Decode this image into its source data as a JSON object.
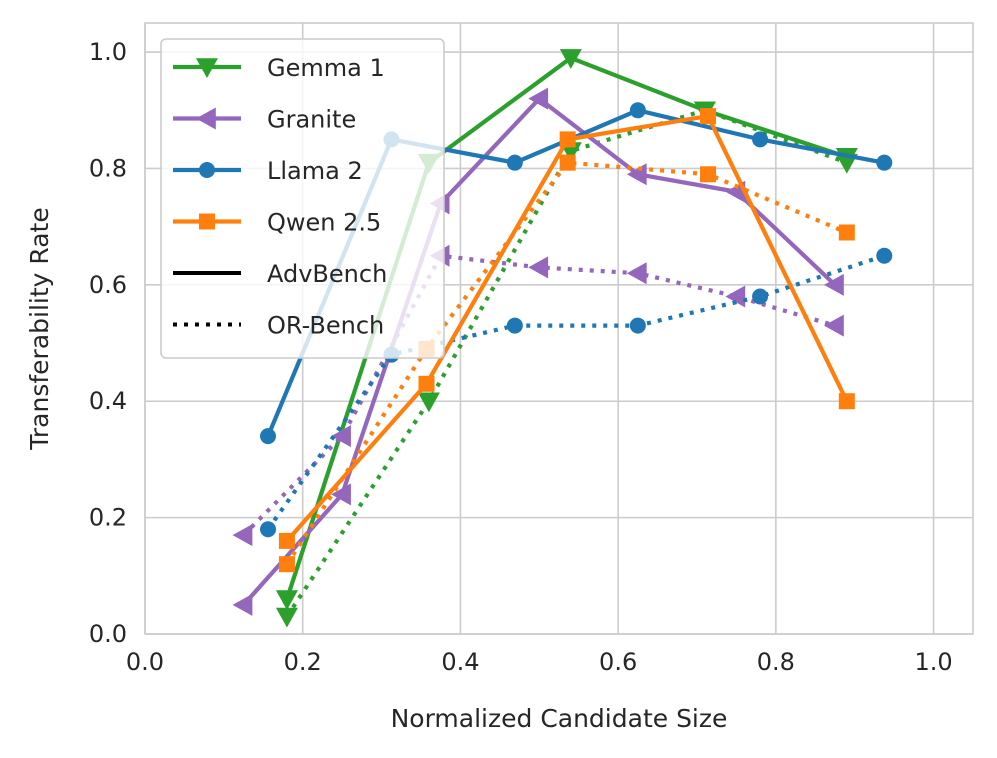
{
  "chart_data": {
    "type": "line",
    "title": "",
    "xlabel": "Normalized Candidate Size",
    "ylabel": "Transferability Rate",
    "xlim": [
      0.0,
      1.05
    ],
    "ylim": [
      0.0,
      1.05
    ],
    "xticks": [
      "0.0",
      "0.2",
      "0.4",
      "0.6",
      "0.8",
      "1.0"
    ],
    "yticks": [
      "0.0",
      "0.2",
      "0.4",
      "0.6",
      "0.8",
      "1.0"
    ],
    "grid": true,
    "legend_position": "top-left",
    "legend": {
      "models": [
        {
          "label": "Gemma 1",
          "color": "#2ca02c",
          "marker": "triangle-down"
        },
        {
          "label": "Granite",
          "color": "#9467bd",
          "marker": "triangle-left"
        },
        {
          "label": "Llama 2",
          "color": "#1f77b4",
          "marker": "circle"
        },
        {
          "label": "Qwen 2.5",
          "color": "#ff7f0e",
          "marker": "square"
        }
      ],
      "styles": [
        {
          "label": "AdvBench",
          "dash": "solid"
        },
        {
          "label": "OR-Bench",
          "dash": "dotted"
        }
      ]
    },
    "series": [
      {
        "model": "Gemma 1",
        "benchmark": "AdvBench",
        "color": "#2ca02c",
        "marker": "triangle-down",
        "dash": "solid",
        "x": [
          0.18,
          0.36,
          0.54,
          0.71,
          0.89
        ],
        "y": [
          0.06,
          0.81,
          0.99,
          0.9,
          0.82
        ]
      },
      {
        "model": "Gemma 1",
        "benchmark": "OR-Bench",
        "color": "#2ca02c",
        "marker": "triangle-down",
        "dash": "dotted",
        "x": [
          0.18,
          0.36,
          0.54,
          0.71,
          0.89
        ],
        "y": [
          0.03,
          0.4,
          0.83,
          0.9,
          0.81
        ]
      },
      {
        "model": "Granite",
        "benchmark": "AdvBench",
        "color": "#9467bd",
        "marker": "triangle-left",
        "dash": "solid",
        "x": [
          0.125,
          0.25,
          0.375,
          0.5,
          0.625,
          0.75,
          0.875
        ],
        "y": [
          0.05,
          0.24,
          0.74,
          0.92,
          0.79,
          0.76,
          0.6
        ]
      },
      {
        "model": "Granite",
        "benchmark": "OR-Bench",
        "color": "#9467bd",
        "marker": "triangle-left",
        "dash": "dotted",
        "x": [
          0.125,
          0.25,
          0.375,
          0.5,
          0.625,
          0.75,
          0.875
        ],
        "y": [
          0.17,
          0.34,
          0.65,
          0.63,
          0.62,
          0.58,
          0.53
        ]
      },
      {
        "model": "Llama 2",
        "benchmark": "AdvBench",
        "color": "#1f77b4",
        "marker": "circle",
        "dash": "solid",
        "x": [
          0.156,
          0.3125,
          0.469,
          0.625,
          0.78,
          0.9375
        ],
        "y": [
          0.34,
          0.85,
          0.81,
          0.9,
          0.85,
          0.81
        ]
      },
      {
        "model": "Llama 2",
        "benchmark": "OR-Bench",
        "color": "#1f77b4",
        "marker": "circle",
        "dash": "dotted",
        "x": [
          0.156,
          0.3125,
          0.469,
          0.625,
          0.78,
          0.9375
        ],
        "y": [
          0.18,
          0.48,
          0.53,
          0.53,
          0.58,
          0.65
        ]
      },
      {
        "model": "Qwen 2.5",
        "benchmark": "AdvBench",
        "color": "#ff7f0e",
        "marker": "square",
        "dash": "solid",
        "x": [
          0.18,
          0.357,
          0.536,
          0.714,
          0.89
        ],
        "y": [
          0.16,
          0.43,
          0.85,
          0.89,
          0.4
        ]
      },
      {
        "model": "Qwen 2.5",
        "benchmark": "OR-Bench",
        "color": "#ff7f0e",
        "marker": "square",
        "dash": "dotted",
        "x": [
          0.18,
          0.357,
          0.536,
          0.714,
          0.89
        ],
        "y": [
          0.12,
          0.49,
          0.81,
          0.79,
          0.69
        ]
      }
    ]
  }
}
